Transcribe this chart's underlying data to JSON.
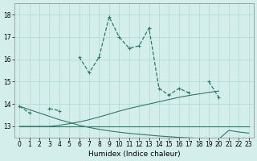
{
  "xlabel": "Humidex (Indice chaleur)",
  "x": [
    0,
    1,
    2,
    3,
    4,
    5,
    6,
    7,
    8,
    9,
    10,
    11,
    12,
    13,
    14,
    15,
    16,
    17,
    18,
    19,
    20,
    21,
    22,
    23
  ],
  "main_y": [
    13.9,
    13.6,
    null,
    13.8,
    13.7,
    null,
    16.1,
    15.4,
    16.1,
    17.9,
    17.0,
    16.5,
    16.6,
    17.4,
    14.7,
    14.4,
    14.7,
    14.5,
    null,
    15.0,
    14.3,
    null,
    null,
    null
  ],
  "line_flat": [
    13.0,
    13.0,
    13.0,
    13.0,
    13.0,
    13.0,
    13.0,
    13.0,
    13.0,
    13.0,
    13.0,
    13.0,
    13.0,
    13.0,
    13.0,
    13.0,
    13.0,
    13.0,
    13.0,
    13.0,
    13.0,
    13.0,
    13.0,
    13.0
  ],
  "line_rise": [
    13.0,
    13.0,
    13.0,
    13.0,
    13.05,
    13.12,
    13.2,
    13.3,
    13.42,
    13.55,
    13.68,
    13.8,
    13.9,
    14.0,
    14.1,
    14.2,
    14.3,
    14.38,
    14.45,
    14.52,
    14.58,
    null,
    null,
    null
  ],
  "line_dec": [
    13.9,
    13.75,
    13.6,
    13.45,
    13.3,
    13.18,
    13.05,
    12.95,
    12.87,
    12.8,
    12.74,
    12.69,
    12.65,
    12.61,
    12.57,
    12.54,
    12.51,
    12.49,
    12.47,
    12.45,
    12.43,
    12.82,
    12.75,
    12.7
  ],
  "ylim": [
    12.5,
    18.5
  ],
  "xlim": [
    -0.5,
    23.5
  ],
  "yticks": [
    13,
    14,
    15,
    16,
    17,
    18
  ],
  "xticks": [
    0,
    1,
    2,
    3,
    4,
    5,
    6,
    7,
    8,
    9,
    10,
    11,
    12,
    13,
    14,
    15,
    16,
    17,
    18,
    19,
    20,
    21,
    22,
    23
  ],
  "bg_color": "#d4eeec",
  "line_color": "#2d7a6a",
  "grid_color": "#b0d8d4",
  "main_lw": 0.9,
  "aux_lw": 0.8
}
